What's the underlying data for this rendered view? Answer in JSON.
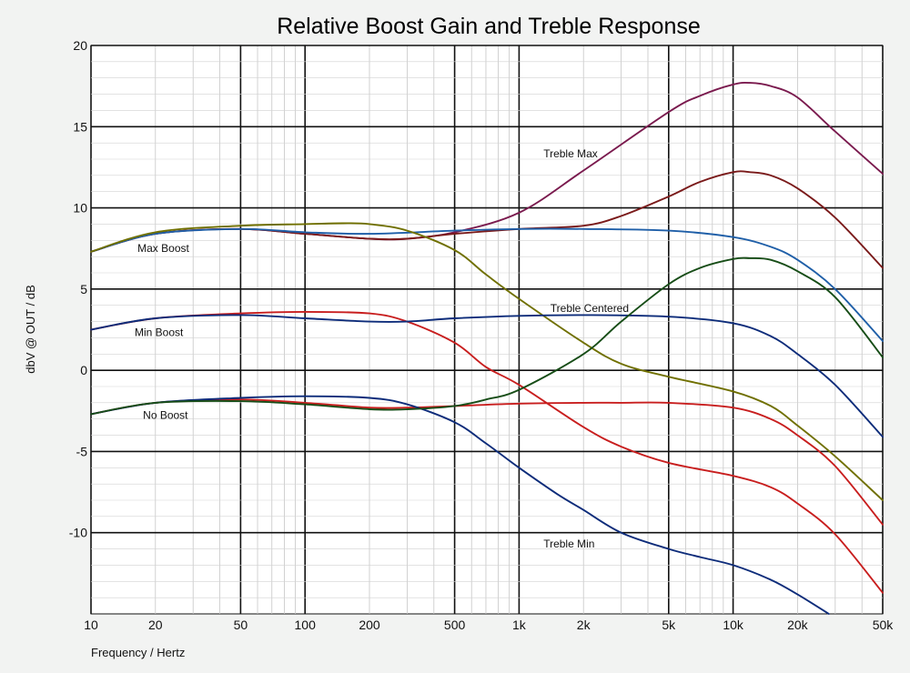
{
  "chart_data": {
    "type": "line",
    "title": "Relative Boost Gain and Treble Response",
    "xlabel": "Frequency / Hertz",
    "ylabel": "dbV @ OUT / dB",
    "xscale": "log",
    "xlim": [
      10,
      50000
    ],
    "ylim": [
      -15,
      20
    ],
    "xticks": [
      10,
      20,
      50,
      100,
      200,
      500,
      1000,
      2000,
      5000,
      10000,
      20000,
      50000
    ],
    "xtick_labels": [
      "10",
      "20",
      "50",
      "100",
      "200",
      "500",
      "1k",
      "2k",
      "5k",
      "10k",
      "20k",
      "50k"
    ],
    "yticks": [
      -10,
      -5,
      0,
      5,
      10,
      15,
      20
    ],
    "ytick_labels": [
      "-10",
      "-5",
      "0",
      "5",
      "10",
      "15",
      "20"
    ],
    "grid": true,
    "legend": "none",
    "annotations": [
      {
        "text": "Treble Max",
        "x": 1300,
        "y": 13.1
      },
      {
        "text": "Max Boost",
        "x": 16.5,
        "y": 7.3
      },
      {
        "text": "Treble Centered",
        "x": 1400,
        "y": 3.6
      },
      {
        "text": "Min Boost",
        "x": 16,
        "y": 2.1
      },
      {
        "text": "No Boost",
        "x": 17.5,
        "y": -3.0
      },
      {
        "text": "Treble Min",
        "x": 1300,
        "y": -10.9
      }
    ],
    "series": [
      {
        "color": "#7a1a4e",
        "x": [
          10,
          20,
          50,
          100,
          200,
          300,
          500,
          1000,
          2000,
          5000,
          7000,
          10000,
          12000,
          15000,
          20000,
          30000,
          50000
        ],
        "y": [
          7.3,
          8.4,
          8.7,
          8.4,
          8.1,
          8.1,
          8.5,
          9.7,
          12.3,
          15.9,
          16.9,
          17.6,
          17.7,
          17.5,
          16.8,
          14.7,
          12.1
        ]
      },
      {
        "color": "#7a1a1a",
        "x": [
          10,
          20,
          50,
          100,
          200,
          300,
          500,
          1000,
          2000,
          3000,
          5000,
          7000,
          10000,
          12000,
          15000,
          20000,
          30000,
          50000
        ],
        "y": [
          7.3,
          8.4,
          8.7,
          8.4,
          8.1,
          8.1,
          8.4,
          8.7,
          8.9,
          9.5,
          10.7,
          11.6,
          12.2,
          12.2,
          12.0,
          11.2,
          9.4,
          6.3
        ]
      },
      {
        "color": "#1f5fa8",
        "x": [
          10,
          20,
          50,
          100,
          200,
          500,
          1000,
          2000,
          5000,
          10000,
          15000,
          20000,
          30000,
          50000
        ],
        "y": [
          7.3,
          8.4,
          8.7,
          8.5,
          8.4,
          8.6,
          8.7,
          8.7,
          8.6,
          8.2,
          7.6,
          6.8,
          5.0,
          1.8
        ]
      },
      {
        "color": "#707000",
        "x": [
          10,
          20,
          50,
          100,
          150,
          200,
          300,
          500,
          700,
          1000,
          2000,
          3000,
          5000,
          10000,
          15000,
          20000,
          30000,
          50000
        ],
        "y": [
          7.3,
          8.5,
          8.9,
          9.0,
          9.05,
          9.0,
          8.6,
          7.4,
          5.9,
          4.4,
          1.7,
          0.4,
          -0.4,
          -1.3,
          -2.2,
          -3.4,
          -5.3,
          -8.0
        ]
      },
      {
        "color": "#c81e1e",
        "x": [
          10,
          20,
          50,
          100,
          200,
          300,
          500,
          700,
          1000,
          2000,
          3000,
          5000,
          10000,
          15000,
          20000,
          30000,
          50000
        ],
        "y": [
          2.5,
          3.2,
          3.5,
          3.6,
          3.5,
          3.0,
          1.7,
          0.2,
          -0.9,
          -3.5,
          -4.7,
          -5.7,
          -6.5,
          -7.2,
          -8.2,
          -10.1,
          -13.7
        ]
      },
      {
        "color": "#c81e1e",
        "x": [
          10,
          20,
          50,
          100,
          200,
          300,
          500,
          1000,
          2000,
          3000,
          5000,
          10000,
          15000,
          20000,
          30000,
          50000
        ],
        "y": [
          -2.7,
          -2.0,
          -1.8,
          -2.0,
          -2.3,
          -2.3,
          -2.2,
          -2.05,
          -2.0,
          -2.0,
          -2.0,
          -2.3,
          -3.0,
          -4.0,
          -5.9,
          -9.5
        ]
      },
      {
        "color": "#0d2c7a",
        "x": [
          10,
          20,
          50,
          100,
          200,
          300,
          500,
          1000,
          2000,
          5000,
          10000,
          15000,
          20000,
          30000,
          50000
        ],
        "y": [
          2.5,
          3.2,
          3.4,
          3.2,
          3.0,
          3.0,
          3.2,
          3.35,
          3.4,
          3.3,
          2.9,
          2.1,
          1.0,
          -0.9,
          -4.1
        ]
      },
      {
        "color": "#0d2c7a",
        "x": [
          10,
          20,
          50,
          100,
          200,
          300,
          500,
          700,
          1000,
          1500,
          2000,
          3000,
          5000,
          7000,
          10000,
          15000,
          20000,
          28000
        ],
        "y": [
          -2.7,
          -2.0,
          -1.7,
          -1.6,
          -1.7,
          -2.1,
          -3.2,
          -4.5,
          -6.0,
          -7.6,
          -8.6,
          -10.0,
          -11.0,
          -11.5,
          -12.0,
          -12.9,
          -13.8,
          -15.0
        ]
      },
      {
        "color": "#174d17",
        "x": [
          10,
          20,
          50,
          100,
          200,
          300,
          500,
          700,
          1000,
          2000,
          3000,
          5000,
          7000,
          10000,
          12000,
          15000,
          20000,
          30000,
          50000
        ],
        "y": [
          -2.7,
          -2.0,
          -1.9,
          -2.1,
          -2.4,
          -2.4,
          -2.2,
          -1.8,
          -1.2,
          1.0,
          3.0,
          5.3,
          6.3,
          6.85,
          6.9,
          6.8,
          6.1,
          4.5,
          0.8
        ]
      }
    ]
  }
}
